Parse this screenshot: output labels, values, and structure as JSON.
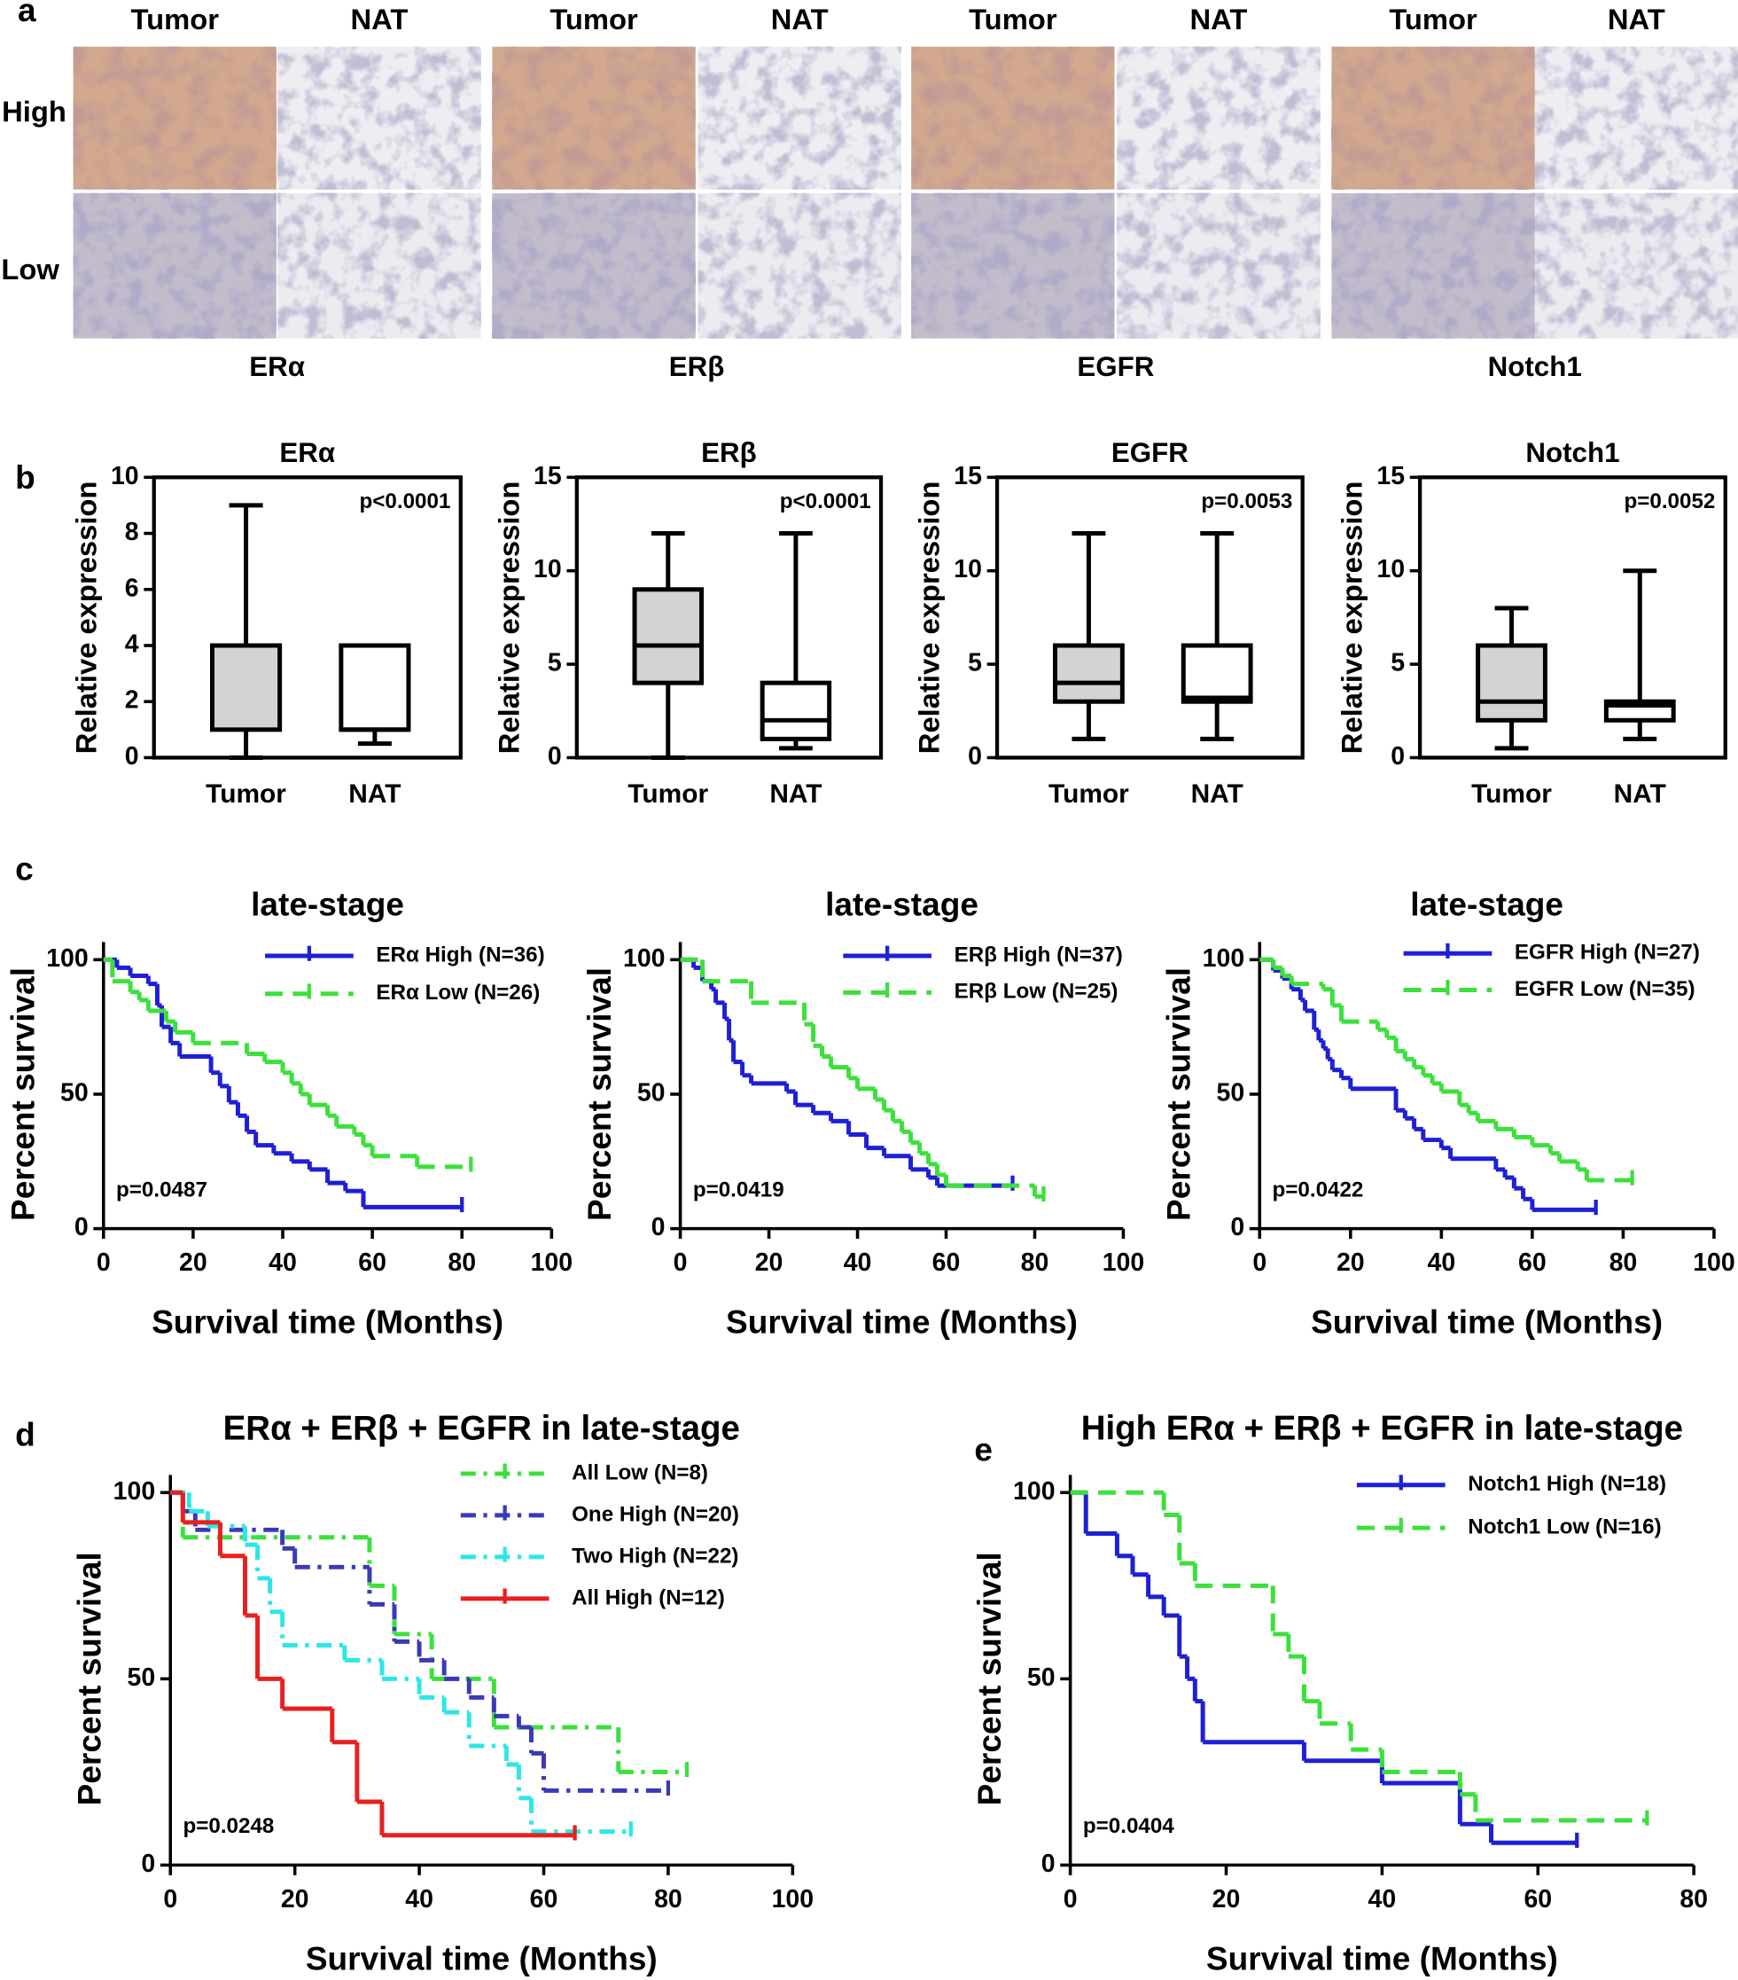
{
  "panel_labels": [
    "a",
    "b",
    "c",
    "d",
    "e"
  ],
  "panel_a": {
    "columns": [
      "Tumor",
      "NAT",
      "Tumor",
      "NAT",
      "Tumor",
      "NAT",
      "Tumor",
      "NAT"
    ],
    "rows": [
      "High",
      "Low"
    ],
    "markers": [
      "ERα",
      "ERβ",
      "EGFR",
      "Notch1"
    ]
  },
  "chart_data": [
    {
      "type": "box",
      "title": "ERα",
      "ylabel": "Relative expression",
      "annotation": "p<0.0001",
      "categories": [
        "Tumor",
        "NAT"
      ],
      "fills": [
        "#d3d3d3",
        "#ffffff"
      ],
      "min": [
        0,
        0.5
      ],
      "q1": [
        1,
        1
      ],
      "median": [
        4,
        1
      ],
      "q3": [
        4,
        4
      ],
      "max": [
        9,
        4
      ],
      "ylim": [
        0,
        10
      ],
      "yticks": [
        0,
        2,
        4,
        6,
        8,
        10
      ]
    },
    {
      "type": "box",
      "title": "ERβ",
      "ylabel": "Relative expression",
      "annotation": "p<0.0001",
      "categories": [
        "Tumor",
        "NAT"
      ],
      "fills": [
        "#d3d3d3",
        "#ffffff"
      ],
      "min": [
        0,
        0.5
      ],
      "q1": [
        4,
        1
      ],
      "median": [
        6,
        2
      ],
      "q3": [
        9,
        4
      ],
      "max": [
        12,
        12
      ],
      "ylim": [
        0,
        15
      ],
      "yticks": [
        0,
        5,
        10,
        15
      ]
    },
    {
      "type": "box",
      "title": "EGFR",
      "ylabel": "Relative expression",
      "annotation": "p=0.0053",
      "categories": [
        "Tumor",
        "NAT"
      ],
      "fills": [
        "#d3d3d3",
        "#ffffff"
      ],
      "min": [
        1,
        1
      ],
      "q1": [
        3,
        3
      ],
      "median": [
        4,
        3.2
      ],
      "q3": [
        6,
        6
      ],
      "max": [
        12,
        12
      ],
      "ylim": [
        0,
        15
      ],
      "yticks": [
        0,
        5,
        10,
        15
      ]
    },
    {
      "type": "box",
      "title": "Notch1",
      "ylabel": "Relative expression",
      "annotation": "p=0.0052",
      "categories": [
        "Tumor",
        "NAT"
      ],
      "fills": [
        "#d3d3d3",
        "#ffffff"
      ],
      "min": [
        0.5,
        1
      ],
      "q1": [
        2,
        2
      ],
      "median": [
        3,
        2.8
      ],
      "q3": [
        6,
        3
      ],
      "max": [
        8,
        10
      ],
      "ylim": [
        0,
        15
      ],
      "yticks": [
        0,
        5,
        10,
        15
      ]
    },
    {
      "type": "step",
      "title": "late-stage",
      "xlabel": "Survival time (Months)",
      "ylabel": "Percent survival",
      "annotation": "p=0.0487",
      "xlim": [
        0,
        100
      ],
      "xticks": [
        0,
        20,
        40,
        60,
        80,
        100
      ],
      "ylim": [
        0,
        100
      ],
      "yticks": [
        0,
        50,
        100
      ],
      "series": [
        {
          "name": "ERα High (N=36)",
          "color": "#1f1fd6",
          "dash": "solid",
          "x": [
            0,
            3,
            6,
            10,
            12,
            13,
            15,
            17,
            24,
            26,
            28,
            30,
            32,
            34,
            38,
            42,
            46,
            50,
            54,
            58,
            80
          ],
          "values": [
            100,
            97,
            94,
            91,
            83,
            75,
            69,
            64,
            58,
            53,
            47,
            42,
            36,
            31,
            28,
            25,
            22,
            17,
            14,
            8,
            8
          ]
        },
        {
          "name": "ERα Low (N=26)",
          "color": "#3ce03c",
          "dash": "dashed",
          "x": [
            0,
            2,
            6,
            8,
            10,
            14,
            16,
            20,
            32,
            36,
            40,
            42,
            44,
            46,
            50,
            52,
            56,
            58,
            60,
            70,
            82
          ],
          "values": [
            100,
            92,
            88,
            85,
            81,
            77,
            73,
            69,
            65,
            62,
            58,
            54,
            50,
            46,
            42,
            38,
            35,
            31,
            27,
            23,
            23
          ]
        }
      ]
    },
    {
      "type": "step",
      "title": "late-stage",
      "xlabel": "Survival time (Months)",
      "ylabel": "Percent survival",
      "annotation": "p=0.0419",
      "xlim": [
        0,
        100
      ],
      "xticks": [
        0,
        20,
        40,
        60,
        80,
        100
      ],
      "ylim": [
        0,
        100
      ],
      "yticks": [
        0,
        50,
        100
      ],
      "series": [
        {
          "name": "ERβ High (N=37)",
          "color": "#1f1fd6",
          "dash": "solid",
          "x": [
            0,
            3,
            5,
            7,
            8,
            10,
            11,
            12,
            14,
            16,
            24,
            26,
            30,
            34,
            38,
            42,
            46,
            52,
            56,
            58,
            75
          ],
          "values": [
            100,
            97,
            92,
            89,
            84,
            78,
            70,
            62,
            57,
            54,
            51,
            46,
            43,
            40,
            35,
            30,
            27,
            22,
            19,
            16,
            16
          ]
        },
        {
          "name": "ERβ Low (N=25)",
          "color": "#3ce03c",
          "dash": "dashed",
          "x": [
            0,
            5,
            16,
            28,
            30,
            32,
            34,
            38,
            40,
            44,
            46,
            48,
            50,
            52,
            54,
            56,
            58,
            60,
            80,
            82
          ],
          "values": [
            100,
            92,
            84,
            76,
            68,
            64,
            60,
            56,
            52,
            48,
            44,
            40,
            36,
            32,
            28,
            24,
            20,
            16,
            12,
            12
          ]
        }
      ]
    },
    {
      "type": "step",
      "title": "late-stage",
      "xlabel": "Survival time (Months)",
      "ylabel": "Percent survival",
      "annotation": "p=0.0422",
      "xlim": [
        0,
        100
      ],
      "xticks": [
        0,
        20,
        40,
        60,
        80,
        100
      ],
      "ylim": [
        0,
        100
      ],
      "yticks": [
        0,
        50,
        100
      ],
      "series": [
        {
          "name": "EGFR High (N=27)",
          "color": "#1f1fd6",
          "dash": "solid",
          "x": [
            0,
            3,
            5,
            7,
            9,
            10,
            12,
            13,
            14,
            15,
            16,
            18,
            20,
            30,
            32,
            34,
            36,
            40,
            42,
            52,
            54,
            56,
            58,
            60,
            74
          ],
          "values": [
            100,
            96,
            93,
            89,
            85,
            81,
            74,
            70,
            67,
            63,
            59,
            56,
            52,
            44,
            41,
            37,
            33,
            30,
            26,
            22,
            19,
            15,
            11,
            7,
            7
          ]
        },
        {
          "name": "EGFR Low (N=35)",
          "color": "#3ce03c",
          "dash": "dashed",
          "x": [
            0,
            3,
            5,
            7,
            14,
            16,
            18,
            26,
            28,
            30,
            32,
            34,
            36,
            38,
            40,
            44,
            46,
            48,
            52,
            56,
            60,
            64,
            66,
            70,
            72,
            82
          ],
          "values": [
            100,
            97,
            94,
            91,
            89,
            83,
            77,
            74,
            71,
            66,
            63,
            60,
            57,
            54,
            51,
            46,
            43,
            40,
            37,
            34,
            31,
            28,
            25,
            22,
            18,
            18
          ]
        }
      ]
    },
    {
      "type": "step",
      "title": "ERα + ERβ + EGFR in late-stage",
      "xlabel": "Survival time (Months)",
      "ylabel": "Percent survival",
      "annotation": "p=0.0248",
      "xlim": [
        0,
        100
      ],
      "xticks": [
        0,
        20,
        40,
        60,
        80,
        100
      ],
      "ylim": [
        0,
        100
      ],
      "yticks": [
        0,
        50,
        100
      ],
      "series": [
        {
          "name": "All Low (N=8)",
          "color": "#3ce03c",
          "dash": "dashdot",
          "x": [
            0,
            2,
            32,
            36,
            42,
            52,
            72,
            83
          ],
          "values": [
            100,
            88,
            75,
            62,
            50,
            37,
            25,
            25
          ]
        },
        {
          "name": "One High (N=20)",
          "color": "#3a3ab8",
          "dash": "dashdot",
          "x": [
            0,
            2,
            4,
            18,
            20,
            32,
            36,
            40,
            44,
            48,
            52,
            56,
            58,
            60,
            80
          ],
          "values": [
            100,
            95,
            90,
            85,
            80,
            70,
            60,
            55,
            50,
            45,
            40,
            37,
            30,
            20,
            20
          ]
        },
        {
          "name": "Two High (N=22)",
          "color": "#2ee6e6",
          "dash": "dashdot",
          "x": [
            0,
            3,
            6,
            12,
            14,
            16,
            18,
            28,
            34,
            40,
            44,
            48,
            54,
            56,
            58,
            74
          ],
          "values": [
            100,
            95,
            91,
            86,
            77,
            68,
            59,
            55,
            50,
            45,
            41,
            32,
            27,
            18,
            9,
            9
          ]
        },
        {
          "name": "All High (N=12)",
          "color": "#e82020",
          "dash": "solid",
          "x": [
            0,
            2,
            8,
            12,
            14,
            18,
            26,
            30,
            34,
            65
          ],
          "values": [
            100,
            92,
            83,
            67,
            50,
            42,
            33,
            17,
            8,
            8
          ]
        }
      ]
    },
    {
      "type": "step",
      "title": "High ERα + ERβ + EGFR in late-stage",
      "xlabel": "Survival time (Months)",
      "ylabel": "Percent survival",
      "annotation": "p=0.0404",
      "xlim": [
        0,
        80
      ],
      "xticks": [
        0,
        20,
        40,
        60,
        80
      ],
      "ylim": [
        0,
        100
      ],
      "yticks": [
        0,
        50,
        100
      ],
      "series": [
        {
          "name": "Notch1 High (N=18)",
          "color": "#1f1fd6",
          "dash": "solid",
          "x": [
            0,
            2,
            6,
            8,
            10,
            12,
            14,
            15,
            16,
            17,
            30,
            40,
            50,
            54,
            65
          ],
          "values": [
            100,
            89,
            83,
            78,
            72,
            67,
            56,
            50,
            44,
            33,
            28,
            22,
            11,
            6,
            6
          ]
        },
        {
          "name": "Notch1 Low (N=16)",
          "color": "#3ce03c",
          "dash": "dashed",
          "x": [
            0,
            12,
            14,
            16,
            26,
            28,
            30,
            32,
            36,
            40,
            50,
            52,
            74
          ],
          "values": [
            100,
            94,
            81,
            75,
            62,
            56,
            44,
            38,
            31,
            25,
            19,
            12,
            12
          ]
        }
      ]
    }
  ]
}
